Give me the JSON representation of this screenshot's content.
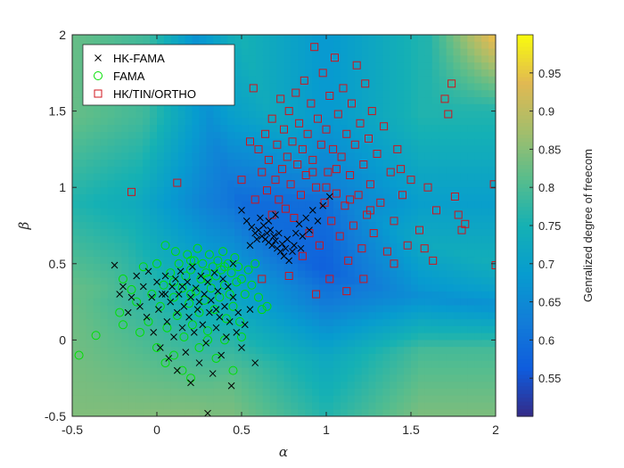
{
  "chart_data": {
    "type": "scatter",
    "xlabel": "α",
    "ylabel": "β",
    "xlim": [
      -0.5,
      2
    ],
    "ylim": [
      -0.5,
      2
    ],
    "x_ticks": [
      "-0.5",
      "0",
      "0.5",
      "1",
      "1.5",
      "2"
    ],
    "y_ticks": [
      "-0.5",
      "0",
      "0.5",
      "1",
      "1.5",
      "2"
    ],
    "x_tick_values": [
      -0.5,
      0,
      0.5,
      1,
      1.5,
      2
    ],
    "y_tick_values": [
      -0.5,
      0,
      0.5,
      1,
      1.5,
      2
    ],
    "grid": false,
    "legend_position": "top-left",
    "colorbar": {
      "label": "Genralized degree of freecom",
      "range": [
        0.5,
        1.0
      ],
      "ticks": [
        "0.55",
        "0.6",
        "0.65",
        "0.7",
        "0.75",
        "0.8",
        "0.85",
        "0.9",
        "0.95"
      ],
      "tick_values": [
        0.55,
        0.6,
        0.65,
        0.7,
        0.75,
        0.8,
        0.85,
        0.9,
        0.95
      ],
      "colormap": "parula"
    },
    "series": [
      {
        "name": "HK-FAMA",
        "marker": "x",
        "color": "#000000",
        "points": [
          [
            -0.25,
            0.49
          ],
          [
            -0.22,
            0.3
          ],
          [
            -0.2,
            0.35
          ],
          [
            -0.17,
            0.18
          ],
          [
            -0.15,
            0.28
          ],
          [
            -0.12,
            0.42
          ],
          [
            -0.1,
            0.22
          ],
          [
            -0.08,
            0.35
          ],
          [
            -0.06,
            0.15
          ],
          [
            -0.05,
            0.45
          ],
          [
            -0.03,
            0.28
          ],
          [
            -0.02,
            0.05
          ],
          [
            0.0,
            0.38
          ],
          [
            0.01,
            0.2
          ],
          [
            0.02,
            -0.05
          ],
          [
            0.03,
            0.3
          ],
          [
            0.05,
            0.42
          ],
          [
            0.06,
            0.12
          ],
          [
            0.07,
            -0.12
          ],
          [
            0.08,
            0.25
          ],
          [
            0.09,
            0.35
          ],
          [
            0.1,
            0.02
          ],
          [
            0.11,
            0.4
          ],
          [
            0.12,
            0.18
          ],
          [
            0.12,
            -0.2
          ],
          [
            0.13,
            0.3
          ],
          [
            0.14,
            0.45
          ],
          [
            0.15,
            0.08
          ],
          [
            0.16,
            0.22
          ],
          [
            0.17,
            -0.08
          ],
          [
            0.18,
            0.38
          ],
          [
            0.19,
            0.15
          ],
          [
            0.2,
            0.28
          ],
          [
            0.2,
            -0.28
          ],
          [
            0.21,
            0.48
          ],
          [
            0.22,
            0.05
          ],
          [
            0.23,
            0.34
          ],
          [
            0.24,
            0.2
          ],
          [
            0.25,
            -0.15
          ],
          [
            0.26,
            0.42
          ],
          [
            0.27,
            0.1
          ],
          [
            0.28,
            0.3
          ],
          [
            0.29,
            -0.02
          ],
          [
            0.3,
            0.38
          ],
          [
            0.3,
            -0.48
          ],
          [
            0.31,
            0.18
          ],
          [
            0.32,
            0.26
          ],
          [
            0.33,
            -0.22
          ],
          [
            0.34,
            0.44
          ],
          [
            0.35,
            0.08
          ],
          [
            0.36,
            0.32
          ],
          [
            0.37,
            0.15
          ],
          [
            0.38,
            -0.1
          ],
          [
            0.39,
            0.4
          ],
          [
            0.4,
            0.22
          ],
          [
            0.41,
            0.02
          ],
          [
            0.42,
            0.35
          ],
          [
            0.43,
            0.12
          ],
          [
            0.44,
            -0.3
          ],
          [
            0.45,
            0.28
          ],
          [
            0.47,
            0.05
          ],
          [
            0.48,
            0.18
          ],
          [
            0.5,
            -0.05
          ],
          [
            0.52,
            0.1
          ],
          [
            0.55,
            0.2
          ],
          [
            0.58,
            -0.15
          ],
          [
            0.05,
            0.3
          ],
          [
            0.15,
            0.35
          ],
          [
            0.25,
            0.25
          ],
          [
            0.35,
            0.2
          ],
          [
            0.45,
            0.5
          ],
          [
            0.55,
            0.62
          ],
          [
            0.58,
            0.7
          ],
          [
            0.6,
            0.72
          ],
          [
            0.62,
            0.68
          ],
          [
            0.63,
            0.75
          ],
          [
            0.64,
            0.66
          ],
          [
            0.65,
            0.7
          ],
          [
            0.66,
            0.64
          ],
          [
            0.67,
            0.72
          ],
          [
            0.68,
            0.62
          ],
          [
            0.69,
            0.68
          ],
          [
            0.7,
            0.65
          ],
          [
            0.71,
            0.6
          ],
          [
            0.72,
            0.7
          ],
          [
            0.73,
            0.58
          ],
          [
            0.74,
            0.63
          ],
          [
            0.75,
            0.55
          ],
          [
            0.76,
            0.6
          ],
          [
            0.78,
            0.52
          ],
          [
            0.8,
            0.58
          ],
          [
            0.82,
            0.7
          ],
          [
            0.84,
            0.76
          ],
          [
            0.86,
            0.68
          ],
          [
            0.88,
            0.8
          ],
          [
            0.9,
            0.72
          ],
          [
            0.92,
            0.85
          ],
          [
            0.95,
            0.78
          ],
          [
            0.98,
            0.88
          ],
          [
            1.02,
            0.94
          ],
          [
            0.5,
            0.85
          ],
          [
            0.53,
            0.78
          ],
          [
            0.56,
            0.74
          ],
          [
            0.59,
            0.66
          ],
          [
            0.61,
            0.8
          ],
          [
            0.66,
            0.78
          ],
          [
            0.7,
            0.82
          ],
          [
            0.77,
            0.66
          ],
          [
            0.81,
            0.62
          ],
          [
            0.85,
            0.6
          ]
        ]
      },
      {
        "name": "FAMA",
        "marker": "circle",
        "color": "#00e000",
        "points": [
          [
            -0.46,
            -0.1
          ],
          [
            -0.36,
            0.03
          ],
          [
            -0.22,
            0.18
          ],
          [
            -0.2,
            0.4
          ],
          [
            -0.15,
            0.33
          ],
          [
            -0.12,
            0.25
          ],
          [
            -0.08,
            0.48
          ],
          [
            -0.05,
            0.12
          ],
          [
            -0.03,
            0.3
          ],
          [
            0.0,
            0.5
          ],
          [
            0.02,
            0.22
          ],
          [
            0.04,
            0.36
          ],
          [
            0.05,
            0.62
          ],
          [
            0.06,
            0.08
          ],
          [
            0.08,
            0.44
          ],
          [
            0.1,
            0.28
          ],
          [
            0.11,
            0.58
          ],
          [
            0.12,
            0.16
          ],
          [
            0.13,
            0.5
          ],
          [
            0.15,
            0.34
          ],
          [
            0.16,
            0.02
          ],
          [
            0.17,
            0.42
          ],
          [
            0.18,
            0.56
          ],
          [
            0.19,
            0.24
          ],
          [
            0.2,
            0.46
          ],
          [
            0.21,
            0.1
          ],
          [
            0.22,
            0.52
          ],
          [
            0.23,
            0.32
          ],
          [
            0.24,
            0.6
          ],
          [
            0.25,
            0.18
          ],
          [
            0.26,
            0.4
          ],
          [
            0.27,
            0.5
          ],
          [
            0.28,
            0.26
          ],
          [
            0.29,
            0.44
          ],
          [
            0.3,
            0.06
          ],
          [
            0.31,
            0.56
          ],
          [
            0.32,
            0.34
          ],
          [
            0.33,
            0.48
          ],
          [
            0.34,
            0.2
          ],
          [
            0.35,
            0.42
          ],
          [
            0.36,
            0.52
          ],
          [
            0.37,
            0.28
          ],
          [
            0.38,
            0.46
          ],
          [
            0.39,
            0.58
          ],
          [
            0.4,
            0.36
          ],
          [
            0.41,
            0.14
          ],
          [
            0.42,
            0.5
          ],
          [
            0.43,
            0.3
          ],
          [
            0.44,
            0.44
          ],
          [
            0.45,
            0.22
          ],
          [
            0.46,
            0.54
          ],
          [
            0.47,
            0.38
          ],
          [
            0.48,
            0.48
          ],
          [
            0.49,
            0.12
          ],
          [
            0.5,
            0.4
          ],
          [
            0.52,
            0.3
          ],
          [
            0.54,
            0.46
          ],
          [
            0.56,
            0.36
          ],
          [
            0.58,
            0.5
          ],
          [
            0.6,
            0.28
          ],
          [
            0.62,
            0.2
          ],
          [
            0.65,
            0.22
          ],
          [
            -0.2,
            0.1
          ],
          [
            -0.1,
            0.05
          ],
          [
            0.0,
            -0.05
          ],
          [
            0.05,
            -0.15
          ],
          [
            0.1,
            -0.1
          ],
          [
            0.15,
            -0.2
          ],
          [
            0.2,
            -0.25
          ],
          [
            0.25,
            -0.05
          ],
          [
            0.3,
            0.0
          ],
          [
            0.35,
            -0.12
          ],
          [
            0.4,
            0.0
          ],
          [
            0.45,
            -0.2
          ],
          [
            0.5,
            0.02
          ],
          [
            0.1,
            0.38
          ],
          [
            0.2,
            0.3
          ],
          [
            0.3,
            0.4
          ],
          [
            0.4,
            0.48
          ],
          [
            0.2,
            0.52
          ]
        ]
      },
      {
        "name": "HK/TIN/ORTHO",
        "marker": "square",
        "color": "#d0141c",
        "points": [
          [
            -0.15,
            0.97
          ],
          [
            0.12,
            1.03
          ],
          [
            0.57,
            1.65
          ],
          [
            0.6,
            1.25
          ],
          [
            0.62,
            1.1
          ],
          [
            0.64,
            1.35
          ],
          [
            0.65,
            0.98
          ],
          [
            0.66,
            1.18
          ],
          [
            0.68,
            1.45
          ],
          [
            0.7,
            1.05
          ],
          [
            0.71,
            1.28
          ],
          [
            0.72,
            0.92
          ],
          [
            0.73,
            1.58
          ],
          [
            0.74,
            1.12
          ],
          [
            0.75,
            1.38
          ],
          [
            0.76,
            0.86
          ],
          [
            0.77,
            1.2
          ],
          [
            0.78,
            1.5
          ],
          [
            0.79,
            1.02
          ],
          [
            0.8,
            1.3
          ],
          [
            0.81,
            0.8
          ],
          [
            0.82,
            1.62
          ],
          [
            0.83,
            1.15
          ],
          [
            0.84,
            1.42
          ],
          [
            0.85,
            0.95
          ],
          [
            0.86,
            1.25
          ],
          [
            0.87,
            1.7
          ],
          [
            0.88,
            1.08
          ],
          [
            0.89,
            1.35
          ],
          [
            0.9,
            0.7
          ],
          [
            0.91,
            1.55
          ],
          [
            0.92,
            1.18
          ],
          [
            0.93,
            1.92
          ],
          [
            0.94,
            1.0
          ],
          [
            0.95,
            1.45
          ],
          [
            0.96,
            0.62
          ],
          [
            0.97,
            1.28
          ],
          [
            0.98,
            1.75
          ],
          [
            0.99,
            0.9
          ],
          [
            1.0,
            1.38
          ],
          [
            1.01,
            1.1
          ],
          [
            1.02,
            1.6
          ],
          [
            1.03,
            0.78
          ],
          [
            1.04,
            1.25
          ],
          [
            1.05,
            1.85
          ],
          [
            1.06,
            0.96
          ],
          [
            1.07,
            1.48
          ],
          [
            1.08,
            0.68
          ],
          [
            1.09,
            1.2
          ],
          [
            1.1,
            1.65
          ],
          [
            1.11,
            0.88
          ],
          [
            1.12,
            1.35
          ],
          [
            1.13,
            0.52
          ],
          [
            1.14,
            1.08
          ],
          [
            1.15,
            1.55
          ],
          [
            1.16,
            0.75
          ],
          [
            1.17,
            1.28
          ],
          [
            1.18,
            1.8
          ],
          [
            1.19,
            0.95
          ],
          [
            1.2,
            1.42
          ],
          [
            1.21,
            0.6
          ],
          [
            1.22,
            1.15
          ],
          [
            1.23,
            1.68
          ],
          [
            1.24,
            0.82
          ],
          [
            1.25,
            1.32
          ],
          [
            1.26,
            1.02
          ],
          [
            1.27,
            1.5
          ],
          [
            1.28,
            0.7
          ],
          [
            1.3,
            1.22
          ],
          [
            1.32,
            0.9
          ],
          [
            1.34,
            1.4
          ],
          [
            1.36,
            0.58
          ],
          [
            1.38,
            1.1
          ],
          [
            1.4,
            0.78
          ],
          [
            1.42,
            1.25
          ],
          [
            1.45,
            0.95
          ],
          [
            1.48,
            0.62
          ],
          [
            1.5,
            1.05
          ],
          [
            1.55,
            0.72
          ],
          [
            1.6,
            1.0
          ],
          [
            1.65,
            0.85
          ],
          [
            1.7,
            1.58
          ],
          [
            1.72,
            1.48
          ],
          [
            1.74,
            1.68
          ],
          [
            1.76,
            0.94
          ],
          [
            1.78,
            0.82
          ],
          [
            1.8,
            0.72
          ],
          [
            1.82,
            0.76
          ],
          [
            1.99,
            1.02
          ],
          [
            2.0,
            0.49
          ],
          [
            0.5,
            1.05
          ],
          [
            0.55,
            1.3
          ],
          [
            0.58,
            0.92
          ],
          [
            0.62,
            0.4
          ],
          [
            0.68,
            0.82
          ],
          [
            0.78,
            0.42
          ],
          [
            0.86,
            0.55
          ],
          [
            0.94,
            0.3
          ],
          [
            1.02,
            0.4
          ],
          [
            1.12,
            0.32
          ],
          [
            1.22,
            0.4
          ],
          [
            1.4,
            0.5
          ],
          [
            0.92,
            1.1
          ],
          [
            1.0,
            1.0
          ],
          [
            1.06,
            1.12
          ],
          [
            1.14,
            0.92
          ],
          [
            1.26,
            0.85
          ],
          [
            1.44,
            1.12
          ],
          [
            1.58,
            0.6
          ],
          [
            1.63,
            0.52
          ]
        ]
      }
    ]
  }
}
